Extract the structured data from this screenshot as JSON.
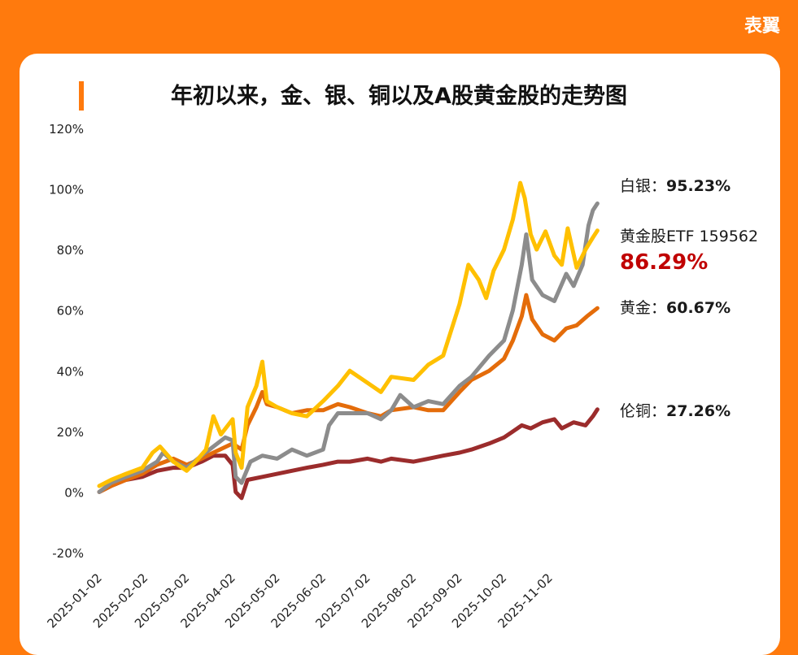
{
  "brand": "表翼",
  "colors": {
    "background": "#ff7a0d",
    "silver": "#8c8c8c",
    "gold_stock_etf": "#ffc000",
    "gold": "#e46c0a",
    "copper": "#9b2c2c",
    "highlight_value": "#c00000"
  },
  "annotations": {
    "silver_name": "白银：",
    "silver_value": "95.23%",
    "etf_name": "黄金股ETF 159562",
    "etf_value": "86.29%",
    "gold_name": "黄金：",
    "gold_value": "60.67%",
    "copper_name": "伦铜：",
    "copper_value": "27.26%"
  },
  "chart_data": {
    "type": "line",
    "title": "年初以来，金、银、铜以及A股黄金股的走势图",
    "xlabel": "",
    "ylabel": "",
    "ylim": [
      -20,
      120
    ],
    "y_ticks": [
      -20,
      0,
      20,
      40,
      60,
      80,
      100,
      120
    ],
    "y_tick_labels": [
      "-20%",
      "0%",
      "20%",
      "40%",
      "60%",
      "80%",
      "100%",
      "120%"
    ],
    "x_tick_labels": [
      "2025-01-02",
      "2025-02-02",
      "2025-03-02",
      "2025-04-02",
      "2025-05-02",
      "2025-06-02",
      "2025-07-02",
      "2025-08-02",
      "2025-09-02",
      "2025-10-02",
      "2025-11-02"
    ],
    "x_range": [
      "2025-01-02",
      "2025-12-04"
    ],
    "grid": false,
    "series": [
      {
        "name": "白银",
        "points": [
          [
            "2025-01-02",
            0
          ],
          [
            "2025-01-10",
            3
          ],
          [
            "2025-01-20",
            5
          ],
          [
            "2025-01-31",
            7
          ],
          [
            "2025-02-10",
            10
          ],
          [
            "2025-02-14",
            13
          ],
          [
            "2025-02-21",
            10
          ],
          [
            "2025-03-02",
            8
          ],
          [
            "2025-03-12",
            12
          ],
          [
            "2025-03-20",
            15
          ],
          [
            "2025-03-28",
            18
          ],
          [
            "2025-04-02",
            17
          ],
          [
            "2025-04-04",
            5
          ],
          [
            "2025-04-08",
            3
          ],
          [
            "2025-04-14",
            10
          ],
          [
            "2025-04-22",
            12
          ],
          [
            "2025-05-02",
            11
          ],
          [
            "2025-05-12",
            14
          ],
          [
            "2025-05-22",
            12
          ],
          [
            "2025-06-02",
            14
          ],
          [
            "2025-06-06",
            22
          ],
          [
            "2025-06-12",
            26
          ],
          [
            "2025-06-20",
            26
          ],
          [
            "2025-07-02",
            26
          ],
          [
            "2025-07-11",
            24
          ],
          [
            "2025-07-18",
            27
          ],
          [
            "2025-07-24",
            32
          ],
          [
            "2025-08-02",
            28
          ],
          [
            "2025-08-12",
            30
          ],
          [
            "2025-08-22",
            29
          ],
          [
            "2025-09-02",
            35
          ],
          [
            "2025-09-10",
            38
          ],
          [
            "2025-09-22",
            45
          ],
          [
            "2025-10-02",
            50
          ],
          [
            "2025-10-08",
            60
          ],
          [
            "2025-10-14",
            75
          ],
          [
            "2025-10-17",
            85
          ],
          [
            "2025-10-21",
            70
          ],
          [
            "2025-10-28",
            65
          ],
          [
            "2025-11-05",
            63
          ],
          [
            "2025-11-13",
            72
          ],
          [
            "2025-11-18",
            68
          ],
          [
            "2025-11-24",
            75
          ],
          [
            "2025-11-28",
            88
          ],
          [
            "2025-12-01",
            93
          ],
          [
            "2025-12-04",
            95.23
          ]
        ]
      },
      {
        "name": "黄金股ETF 159562",
        "points": [
          [
            "2025-01-02",
            2
          ],
          [
            "2025-01-10",
            4
          ],
          [
            "2025-01-20",
            6
          ],
          [
            "2025-01-31",
            8
          ],
          [
            "2025-02-07",
            13
          ],
          [
            "2025-02-12",
            15
          ],
          [
            "2025-02-21",
            10
          ],
          [
            "2025-03-02",
            7
          ],
          [
            "2025-03-08",
            10
          ],
          [
            "2025-03-15",
            14
          ],
          [
            "2025-03-20",
            25
          ],
          [
            "2025-03-25",
            19
          ],
          [
            "2025-04-02",
            24
          ],
          [
            "2025-04-04",
            13
          ],
          [
            "2025-04-08",
            8
          ],
          [
            "2025-04-12",
            28
          ],
          [
            "2025-04-18",
            35
          ],
          [
            "2025-04-22",
            43
          ],
          [
            "2025-04-25",
            30
          ],
          [
            "2025-05-02",
            28
          ],
          [
            "2025-05-12",
            26
          ],
          [
            "2025-05-22",
            25
          ],
          [
            "2025-06-02",
            30
          ],
          [
            "2025-06-12",
            35
          ],
          [
            "2025-06-20",
            40
          ],
          [
            "2025-07-02",
            36
          ],
          [
            "2025-07-11",
            33
          ],
          [
            "2025-07-18",
            38
          ],
          [
            "2025-08-02",
            37
          ],
          [
            "2025-08-12",
            42
          ],
          [
            "2025-08-22",
            45
          ],
          [
            "2025-09-02",
            62
          ],
          [
            "2025-09-08",
            75
          ],
          [
            "2025-09-15",
            70
          ],
          [
            "2025-09-20",
            64
          ],
          [
            "2025-09-25",
            73
          ],
          [
            "2025-10-02",
            80
          ],
          [
            "2025-10-08",
            90
          ],
          [
            "2025-10-13",
            102
          ],
          [
            "2025-10-16",
            97
          ],
          [
            "2025-10-20",
            85
          ],
          [
            "2025-10-24",
            80
          ],
          [
            "2025-10-30",
            86
          ],
          [
            "2025-11-05",
            78
          ],
          [
            "2025-11-10",
            75
          ],
          [
            "2025-11-14",
            87
          ],
          [
            "2025-11-20",
            74
          ],
          [
            "2025-11-26",
            80
          ],
          [
            "2025-12-01",
            84
          ],
          [
            "2025-12-04",
            86.29
          ]
        ]
      },
      {
        "name": "黄金",
        "points": [
          [
            "2025-01-02",
            0
          ],
          [
            "2025-01-10",
            2
          ],
          [
            "2025-01-20",
            4
          ],
          [
            "2025-01-31",
            6
          ],
          [
            "2025-02-10",
            9
          ],
          [
            "2025-02-21",
            11
          ],
          [
            "2025-03-02",
            9
          ],
          [
            "2025-03-12",
            11
          ],
          [
            "2025-03-20",
            13
          ],
          [
            "2025-04-02",
            16
          ],
          [
            "2025-04-08",
            14
          ],
          [
            "2025-04-12",
            22
          ],
          [
            "2025-04-18",
            28
          ],
          [
            "2025-04-22",
            33
          ],
          [
            "2025-04-25",
            29
          ],
          [
            "2025-05-02",
            28
          ],
          [
            "2025-05-12",
            26
          ],
          [
            "2025-05-22",
            27
          ],
          [
            "2025-06-02",
            27
          ],
          [
            "2025-06-12",
            29
          ],
          [
            "2025-06-20",
            28
          ],
          [
            "2025-07-02",
            26
          ],
          [
            "2025-07-11",
            25
          ],
          [
            "2025-07-18",
            27
          ],
          [
            "2025-08-02",
            28
          ],
          [
            "2025-08-12",
            27
          ],
          [
            "2025-08-22",
            27
          ],
          [
            "2025-09-02",
            33
          ],
          [
            "2025-09-10",
            37
          ],
          [
            "2025-09-22",
            40
          ],
          [
            "2025-10-02",
            44
          ],
          [
            "2025-10-08",
            50
          ],
          [
            "2025-10-14",
            58
          ],
          [
            "2025-10-17",
            65
          ],
          [
            "2025-10-21",
            57
          ],
          [
            "2025-10-28",
            52
          ],
          [
            "2025-11-05",
            50
          ],
          [
            "2025-11-13",
            54
          ],
          [
            "2025-11-20",
            55
          ],
          [
            "2025-11-27",
            58
          ],
          [
            "2025-12-04",
            60.67
          ]
        ]
      },
      {
        "name": "伦铜",
        "points": [
          [
            "2025-01-02",
            0
          ],
          [
            "2025-01-10",
            2
          ],
          [
            "2025-01-20",
            4
          ],
          [
            "2025-01-31",
            5
          ],
          [
            "2025-02-10",
            7
          ],
          [
            "2025-02-21",
            8
          ],
          [
            "2025-03-02",
            8
          ],
          [
            "2025-03-12",
            10
          ],
          [
            "2025-03-20",
            12
          ],
          [
            "2025-03-28",
            12
          ],
          [
            "2025-04-02",
            9
          ],
          [
            "2025-04-04",
            0
          ],
          [
            "2025-04-08",
            -2
          ],
          [
            "2025-04-12",
            4
          ],
          [
            "2025-04-22",
            5
          ],
          [
            "2025-05-02",
            6
          ],
          [
            "2025-05-12",
            7
          ],
          [
            "2025-05-22",
            8
          ],
          [
            "2025-06-02",
            9
          ],
          [
            "2025-06-12",
            10
          ],
          [
            "2025-06-20",
            10
          ],
          [
            "2025-07-02",
            11
          ],
          [
            "2025-07-11",
            10
          ],
          [
            "2025-07-18",
            11
          ],
          [
            "2025-08-02",
            10
          ],
          [
            "2025-08-12",
            11
          ],
          [
            "2025-08-22",
            12
          ],
          [
            "2025-09-02",
            13
          ],
          [
            "2025-09-10",
            14
          ],
          [
            "2025-09-22",
            16
          ],
          [
            "2025-10-02",
            18
          ],
          [
            "2025-10-08",
            20
          ],
          [
            "2025-10-14",
            22
          ],
          [
            "2025-10-20",
            21
          ],
          [
            "2025-10-28",
            23
          ],
          [
            "2025-11-05",
            24
          ],
          [
            "2025-11-10",
            21
          ],
          [
            "2025-11-18",
            23
          ],
          [
            "2025-11-26",
            22
          ],
          [
            "2025-12-01",
            25
          ],
          [
            "2025-12-04",
            27.26
          ]
        ]
      }
    ]
  }
}
